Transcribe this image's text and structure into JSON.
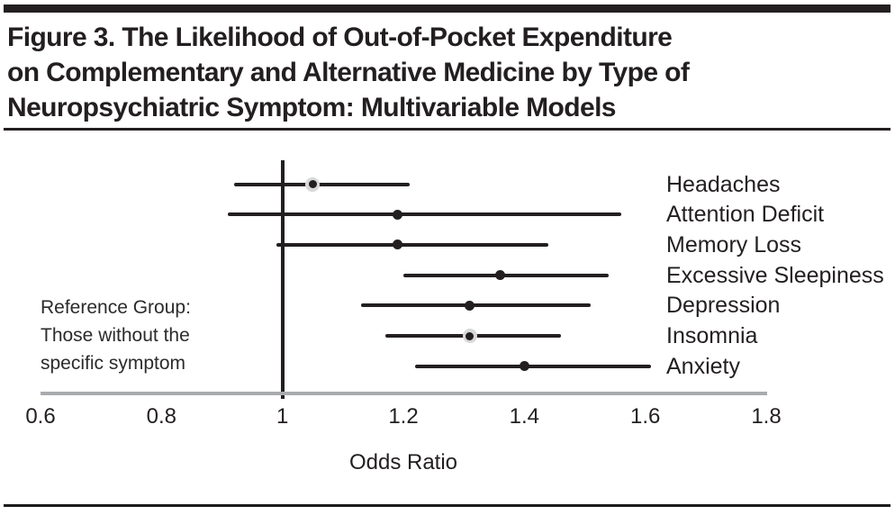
{
  "figure": {
    "title_lines": [
      "Figure 3. The Likelihood of Out-of-Pocket Expenditure",
      "on Complementary and Alternative Medicine by Type of",
      "Neuropsychiatric Symptom: Multivariable Models"
    ]
  },
  "reference_note": {
    "lines": [
      "Reference Group:",
      "Those without the",
      "specific symptom"
    ]
  },
  "chart_data": {
    "type": "scatter",
    "subtype": "forest-plot",
    "xlabel": "Odds Ratio",
    "ylabel": "",
    "xlim": [
      0.6,
      1.8
    ],
    "xticks": [
      0.6,
      0.8,
      1,
      1.2,
      1.4,
      1.6,
      1.8
    ],
    "reference_line_x": 1,
    "grid": false,
    "legend_position": "none",
    "series": [
      {
        "label": "Headaches",
        "odds_ratio": 1.05,
        "ci_low": 0.92,
        "ci_high": 1.21,
        "marker": "halo"
      },
      {
        "label": "Attention Deficit",
        "odds_ratio": 1.19,
        "ci_low": 0.91,
        "ci_high": 1.56,
        "marker": "solid"
      },
      {
        "label": "Memory Loss",
        "odds_ratio": 1.19,
        "ci_low": 0.99,
        "ci_high": 1.44,
        "marker": "solid"
      },
      {
        "label": "Excessive Sleepiness",
        "odds_ratio": 1.36,
        "ci_low": 1.2,
        "ci_high": 1.54,
        "marker": "solid"
      },
      {
        "label": "Depression",
        "odds_ratio": 1.31,
        "ci_low": 1.13,
        "ci_high": 1.51,
        "marker": "solid"
      },
      {
        "label": "Insomnia",
        "odds_ratio": 1.31,
        "ci_low": 1.17,
        "ci_high": 1.46,
        "marker": "halo"
      },
      {
        "label": "Anxiety",
        "odds_ratio": 1.4,
        "ci_low": 1.22,
        "ci_high": 1.61,
        "marker": "solid"
      }
    ],
    "colors": {
      "line": "#231f20",
      "axis": "#a9abae",
      "halo": "#d8d8d8",
      "text": "#231f20"
    }
  }
}
